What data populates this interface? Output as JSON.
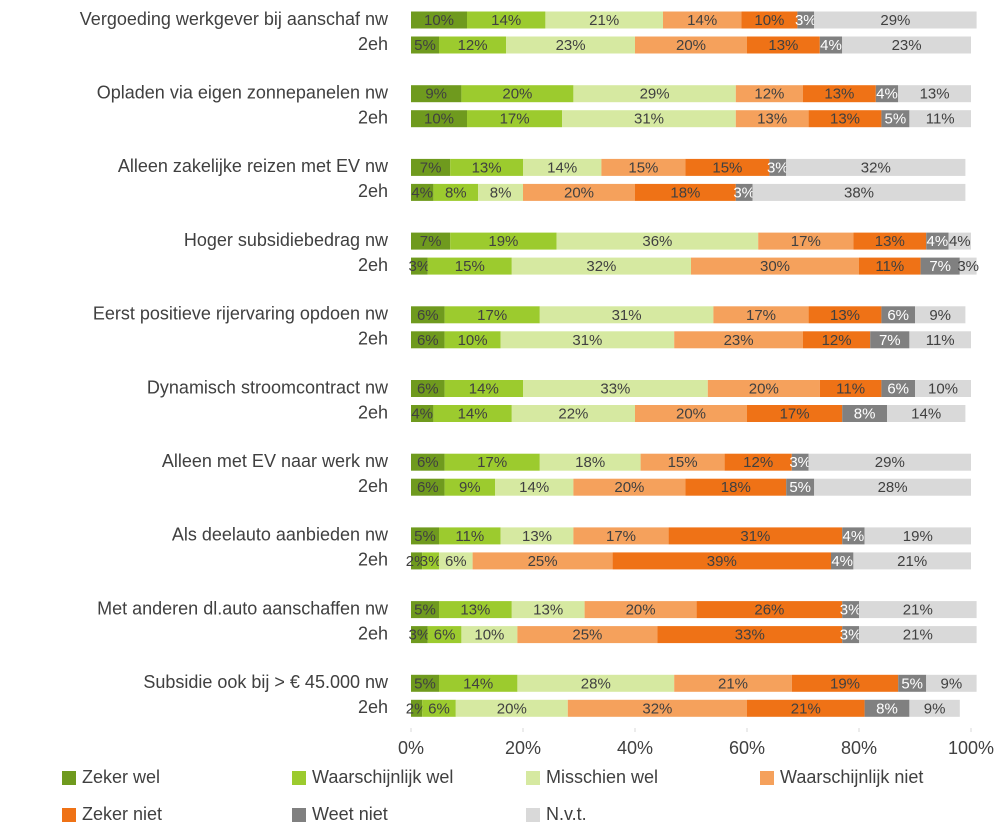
{
  "chart_data": {
    "type": "stacked-barh",
    "categories": [
      "Vergoeding werkgever bij aanschaf nw",
      "2eh",
      "Opladen via eigen zonnepanelen nw",
      "2eh",
      "Alleen zakelijke reizen met EV nw",
      "2eh",
      "Hoger subsidiebedrag nw",
      "2eh",
      "Eerst positieve rijervaring opdoen nw",
      "2eh",
      "Dynamisch stroomcontract nw",
      "2eh",
      "Alleen met EV naar werk nw",
      "2eh",
      "Als deelauto aanbieden nw",
      "2eh",
      "Met anderen dl.auto aanschaffen nw",
      "2eh",
      "Subsidie ook bij > € 45.000 nw",
      "2eh"
    ],
    "series": [
      {
        "name": "Zeker wel",
        "color": "#6f9a1e",
        "values": [
          10,
          5,
          9,
          10,
          7,
          4,
          7,
          3,
          6,
          6,
          6,
          4,
          6,
          6,
          5,
          2,
          5,
          3,
          5,
          2
        ],
        "value_labels": [
          "10%",
          "5%",
          "9%",
          "10%",
          "7%",
          "4%",
          "7%",
          "3%",
          "6%",
          "6%",
          "6%",
          "4%",
          "6%",
          "6%",
          "5%",
          "2%",
          "5%",
          "3%",
          "5%",
          "2%"
        ]
      },
      {
        "name": "Waarschijnlijk wel",
        "color": "#9ccb2e",
        "values": [
          14,
          12,
          20,
          17,
          13,
          8,
          19,
          15,
          17,
          10,
          14,
          14,
          17,
          9,
          11,
          3,
          13,
          6,
          14,
          6
        ],
        "value_labels": [
          "14%",
          "12%",
          "20%",
          "17%",
          "13%",
          "8%",
          "19%",
          "15%",
          "17%",
          "10%",
          "14%",
          "14%",
          "17%",
          "9%",
          "11%",
          "3%",
          "13%",
          "6%",
          "14%",
          "6%"
        ]
      },
      {
        "name": "Misschien wel",
        "color": "#d6e9a1",
        "values": [
          21,
          23,
          29,
          31,
          14,
          8,
          36,
          32,
          31,
          31,
          33,
          22,
          18,
          14,
          13,
          6,
          13,
          10,
          28,
          20
        ],
        "value_labels": [
          "21%",
          "23%",
          "29%",
          "31%",
          "14%",
          "8%",
          "36%",
          "32%",
          "31%",
          "31%",
          "33%",
          "22%",
          "18%",
          "14%",
          "13%",
          "6%",
          "13%",
          "10%",
          "28%",
          "20%"
        ]
      },
      {
        "name": "Waarschijnlijk niet",
        "color": "#f5a15c",
        "values": [
          14,
          20,
          12,
          13,
          15,
          20,
          17,
          30,
          17,
          23,
          20,
          20,
          15,
          20,
          17,
          25,
          20,
          25,
          21,
          32
        ],
        "value_labels": [
          "14%",
          "20%",
          "12%",
          "13%",
          "15%",
          "20%",
          "17%",
          "30%",
          "17%",
          "23%",
          "20%",
          "20%",
          "15%",
          "20%",
          "17%",
          "25%",
          "20%",
          "25%",
          "21%",
          "32%"
        ]
      },
      {
        "name": "Zeker niet",
        "color": "#ef7216",
        "values": [
          10,
          13,
          13,
          13,
          15,
          18,
          13,
          11,
          13,
          12,
          11,
          17,
          12,
          18,
          31,
          39,
          26,
          33,
          19,
          21
        ],
        "value_labels": [
          "10%",
          "13%",
          "13%",
          "13%",
          "15%",
          "18%",
          "13%",
          "11%",
          "13%",
          "12%",
          "11%",
          "17%",
          "12%",
          "18%",
          "31%",
          "39%",
          "26%",
          "33%",
          "19%",
          "21%"
        ]
      },
      {
        "name": "Weet niet",
        "color": "#808080",
        "values": [
          3,
          4,
          4,
          5,
          3,
          3,
          4,
          7,
          6,
          7,
          6,
          8,
          3,
          5,
          4,
          4,
          3,
          3,
          5,
          8
        ],
        "value_labels": [
          "3%",
          "4%",
          "4%",
          "5%",
          "3%",
          "3%",
          "4%",
          "7%",
          "6%",
          "7%",
          "6%",
          "8%",
          "3%",
          "5%",
          "4%",
          "4%",
          "3%",
          "3%",
          "5%",
          "8%"
        ]
      },
      {
        "name": "N.v.t.",
        "color": "#d9d9d9",
        "values": [
          29,
          23,
          13,
          11,
          32,
          38,
          4,
          3,
          9,
          11,
          10,
          14,
          29,
          28,
          19,
          21,
          21,
          21,
          9,
          9
        ],
        "value_labels": [
          "29%",
          "23%",
          "13%",
          "11%",
          "32%",
          "38%",
          "4%",
          "3%",
          "9%",
          "11%",
          "10%",
          "14%",
          "29%",
          "28%",
          "19%",
          "21%",
          "21%",
          "21%",
          "9%",
          "9%"
        ]
      }
    ],
    "xlim": [
      0,
      100
    ],
    "xticks": [
      {
        "value": 0,
        "label": "0%"
      },
      {
        "value": 20,
        "label": "20%"
      },
      {
        "value": 40,
        "label": "40%"
      },
      {
        "value": 60,
        "label": "60%"
      },
      {
        "value": 80,
        "label": "80%"
      },
      {
        "value": 100,
        "label": "100%"
      }
    ]
  }
}
